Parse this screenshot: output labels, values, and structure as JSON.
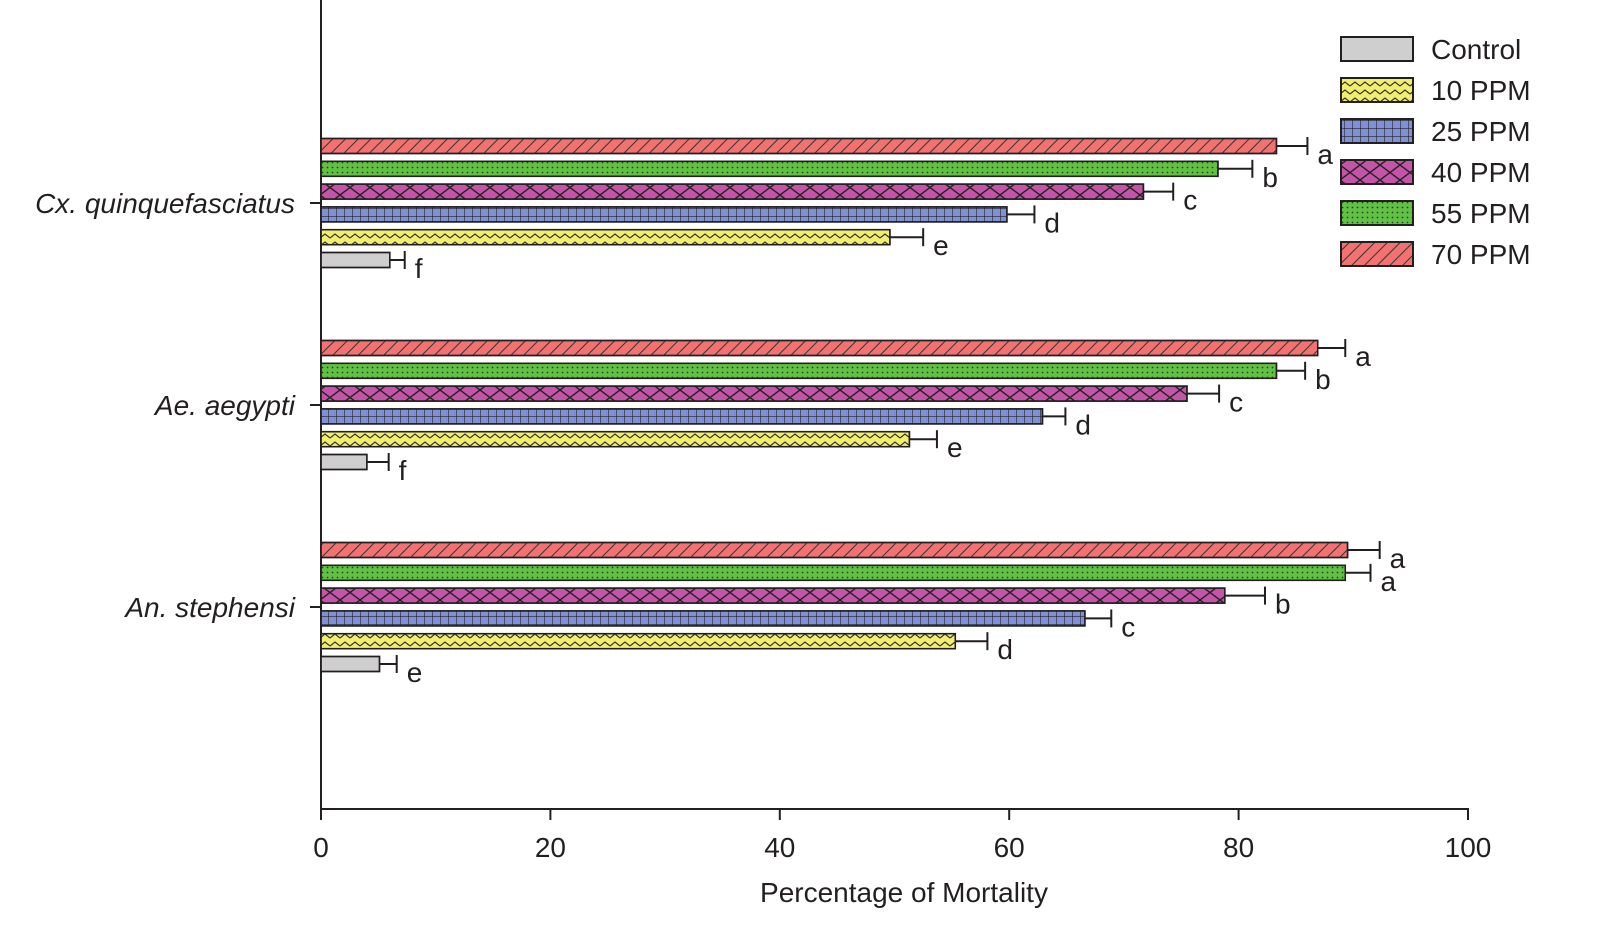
{
  "chart_data": {
    "type": "bar",
    "orientation": "horizontal",
    "title": "",
    "xlabel": "Percentage of Mortality",
    "ylabel": "",
    "xlim": [
      0,
      100
    ],
    "xticks": [
      "0",
      "20",
      "40",
      "60",
      "80",
      "100"
    ],
    "grid": false,
    "legend_position": "top-right",
    "categories": [
      "Cx. quinquefasciatus",
      "Ae. aegypti",
      "An. stephensi"
    ],
    "series": [
      {
        "name": "Control",
        "color": "#cfcfcf",
        "pattern": "none",
        "values": [
          6.0,
          4.0,
          5.1
        ],
        "errors": [
          1.3,
          1.9,
          1.5
        ],
        "letters": [
          "f",
          "f",
          "e"
        ]
      },
      {
        "name": "10 PPM",
        "color": "#f2ef6e",
        "pattern": "zigzag",
        "values": [
          49.6,
          51.3,
          55.3
        ],
        "errors": [
          2.9,
          2.4,
          2.8
        ],
        "letters": [
          "e",
          "e",
          "d"
        ]
      },
      {
        "name": "25 PPM",
        "color": "#7f90d6",
        "pattern": "grid",
        "values": [
          59.8,
          62.9,
          66.6
        ],
        "errors": [
          2.4,
          2.0,
          2.3
        ],
        "letters": [
          "d",
          "d",
          "c"
        ]
      },
      {
        "name": "40 PPM",
        "color": "#c454a8",
        "pattern": "cross",
        "values": [
          71.7,
          75.5,
          78.8
        ],
        "errors": [
          2.6,
          2.8,
          3.5
        ],
        "letters": [
          "c",
          "c",
          "b"
        ]
      },
      {
        "name": "55 PPM",
        "color": "#62c144",
        "pattern": "dots",
        "values": [
          78.2,
          83.3,
          89.3
        ],
        "errors": [
          3.0,
          2.5,
          2.2
        ],
        "letters": [
          "b",
          "b",
          "a"
        ]
      },
      {
        "name": "70 PPM",
        "color": "#f27272",
        "pattern": "diag",
        "values": [
          83.3,
          86.9,
          89.5
        ],
        "errors": [
          2.7,
          2.4,
          2.8
        ],
        "letters": [
          "a",
          "a",
          "a"
        ]
      }
    ]
  }
}
